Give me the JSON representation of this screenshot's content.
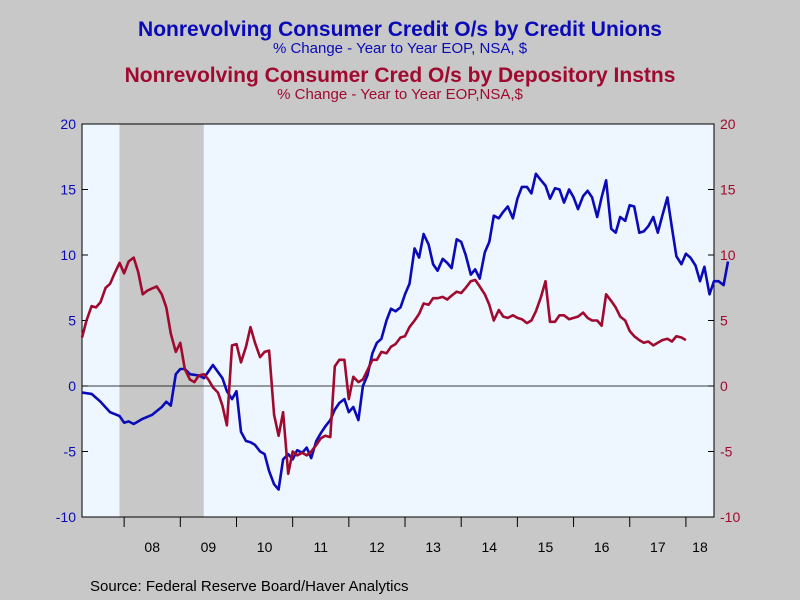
{
  "titles": {
    "title1": "Nonrevolving Consumer Credit O/s by Credit Unions",
    "subtitle1": "% Change - Year to Year     EOP, NSA, $",
    "title2": "Nonrevolving Consumer Cred O/s by Depository Instns",
    "subtitle2": "% Change - Year to Year     EOP,NSA,$"
  },
  "source": "Source:  Federal Reserve Board/Haver Analytics",
  "colors": {
    "background": "#c8c8c8",
    "plot_area": "#eef6ff",
    "recession": "#c8c8c8",
    "credit_unions": "#0a0ab8",
    "depository": "#a00a2e"
  },
  "chart_data": {
    "type": "line",
    "title": "Nonrevolving Consumer Credit O/s by Credit Unions",
    "xlabel": "",
    "ylabel": "",
    "x_unit": "year",
    "xlim": [
      2007.25,
      2018.5
    ],
    "ylim": [
      -10,
      20
    ],
    "yticks": [
      -10,
      -5,
      0,
      5,
      10,
      15,
      20
    ],
    "xtick_labels": [
      {
        "year": 2008,
        "label": "08"
      },
      {
        "year": 2009,
        "label": "09"
      },
      {
        "year": 2010,
        "label": "10"
      },
      {
        "year": 2011,
        "label": "11"
      },
      {
        "year": 2012,
        "label": "12"
      },
      {
        "year": 2013,
        "label": "13"
      },
      {
        "year": 2014,
        "label": "14"
      },
      {
        "year": 2015,
        "label": "15"
      },
      {
        "year": 2016,
        "label": "16"
      },
      {
        "year": 2017,
        "label": "17"
      },
      {
        "year": 2018,
        "label": "18"
      }
    ],
    "recession": [
      2007.917,
      2009.417
    ],
    "zero_line": true,
    "grid": false,
    "series": [
      {
        "name": "Nonrevolving Consumer Credit O/s by Credit Unions",
        "axis": "left",
        "points": [
          [
            2007.25,
            -0.5
          ],
          [
            2007.42,
            -0.6
          ],
          [
            2007.58,
            -1.2
          ],
          [
            2007.75,
            -2.0
          ],
          [
            2007.92,
            -2.3
          ],
          [
            2008.0,
            -2.8
          ],
          [
            2008.08,
            -2.7
          ],
          [
            2008.17,
            -2.9
          ],
          [
            2008.33,
            -2.5
          ],
          [
            2008.5,
            -2.2
          ],
          [
            2008.67,
            -1.6
          ],
          [
            2008.75,
            -1.2
          ],
          [
            2008.83,
            -1.5
          ],
          [
            2008.92,
            0.9
          ],
          [
            2009.0,
            1.3
          ],
          [
            2009.08,
            1.3
          ],
          [
            2009.17,
            0.9
          ],
          [
            2009.33,
            0.8
          ],
          [
            2009.42,
            0.6
          ],
          [
            2009.58,
            1.6
          ],
          [
            2009.75,
            0.6
          ],
          [
            2009.83,
            -0.4
          ],
          [
            2009.92,
            -1.0
          ],
          [
            2010.0,
            -0.4
          ],
          [
            2010.08,
            -3.5
          ],
          [
            2010.17,
            -4.2
          ],
          [
            2010.25,
            -4.3
          ],
          [
            2010.33,
            -4.5
          ],
          [
            2010.42,
            -5.0
          ],
          [
            2010.5,
            -5.2
          ],
          [
            2010.58,
            -6.5
          ],
          [
            2010.67,
            -7.5
          ],
          [
            2010.75,
            -7.9
          ],
          [
            2010.83,
            -5.6
          ],
          [
            2010.92,
            -5.2
          ],
          [
            2011.0,
            -5.6
          ],
          [
            2011.08,
            -4.9
          ],
          [
            2011.17,
            -5.1
          ],
          [
            2011.25,
            -4.7
          ],
          [
            2011.33,
            -5.5
          ],
          [
            2011.42,
            -4.2
          ],
          [
            2011.5,
            -3.6
          ],
          [
            2011.58,
            -3.1
          ],
          [
            2011.67,
            -2.6
          ],
          [
            2011.75,
            -1.8
          ],
          [
            2011.83,
            -1.3
          ],
          [
            2011.92,
            -1.0
          ],
          [
            2012.0,
            -2.0
          ],
          [
            2012.08,
            -1.6
          ],
          [
            2012.17,
            -2.6
          ],
          [
            2012.25,
            0.0
          ],
          [
            2012.33,
            0.8
          ],
          [
            2012.42,
            2.5
          ],
          [
            2012.5,
            3.3
          ],
          [
            2012.58,
            3.6
          ],
          [
            2012.67,
            5.0
          ],
          [
            2012.75,
            5.9
          ],
          [
            2012.83,
            5.7
          ],
          [
            2012.92,
            6.0
          ],
          [
            2013.0,
            7.0
          ],
          [
            2013.08,
            7.8
          ],
          [
            2013.17,
            10.5
          ],
          [
            2013.25,
            9.8
          ],
          [
            2013.33,
            11.6
          ],
          [
            2013.42,
            10.8
          ],
          [
            2013.5,
            9.3
          ],
          [
            2013.58,
            8.8
          ],
          [
            2013.67,
            9.7
          ],
          [
            2013.75,
            9.4
          ],
          [
            2013.83,
            9.0
          ],
          [
            2013.92,
            11.2
          ],
          [
            2014.0,
            11.0
          ],
          [
            2014.08,
            10.0
          ],
          [
            2014.17,
            8.5
          ],
          [
            2014.25,
            8.9
          ],
          [
            2014.33,
            8.2
          ],
          [
            2014.42,
            10.2
          ],
          [
            2014.5,
            11.0
          ],
          [
            2014.58,
            13.0
          ],
          [
            2014.67,
            12.8
          ],
          [
            2014.75,
            13.3
          ],
          [
            2014.83,
            13.7
          ],
          [
            2014.92,
            12.8
          ],
          [
            2015.0,
            14.3
          ],
          [
            2015.08,
            15.2
          ],
          [
            2015.17,
            15.2
          ],
          [
            2015.25,
            14.7
          ],
          [
            2015.33,
            16.2
          ],
          [
            2015.42,
            15.7
          ],
          [
            2015.5,
            15.3
          ],
          [
            2015.58,
            14.3
          ],
          [
            2015.67,
            15.1
          ],
          [
            2015.75,
            15.0
          ],
          [
            2015.83,
            14.0
          ],
          [
            2015.92,
            15.0
          ],
          [
            2016.0,
            14.4
          ],
          [
            2016.08,
            13.5
          ],
          [
            2016.17,
            14.5
          ],
          [
            2016.25,
            14.9
          ],
          [
            2016.33,
            14.4
          ],
          [
            2016.42,
            12.9
          ],
          [
            2016.5,
            14.4
          ],
          [
            2016.58,
            15.7
          ],
          [
            2016.67,
            12.0
          ],
          [
            2016.75,
            11.7
          ],
          [
            2016.83,
            12.9
          ],
          [
            2016.92,
            12.6
          ],
          [
            2017.0,
            13.8
          ],
          [
            2017.08,
            13.7
          ],
          [
            2017.17,
            11.7
          ],
          [
            2017.25,
            11.8
          ],
          [
            2017.33,
            12.2
          ],
          [
            2017.42,
            12.9
          ],
          [
            2017.5,
            11.7
          ],
          [
            2017.58,
            13.0
          ],
          [
            2017.67,
            14.4
          ],
          [
            2017.75,
            12.1
          ],
          [
            2017.83,
            9.9
          ],
          [
            2017.92,
            9.3
          ],
          [
            2018.0,
            10.1
          ],
          [
            2018.08,
            9.8
          ],
          [
            2018.17,
            9.2
          ],
          [
            2018.25,
            8.0
          ],
          [
            2018.33,
            9.1
          ],
          [
            2018.42,
            7.0
          ],
          [
            2018.5,
            8.0
          ],
          [
            2018.58,
            8.0
          ],
          [
            2018.67,
            7.7
          ],
          [
            2018.75,
            9.5
          ]
        ]
      },
      {
        "name": "Nonrevolving Consumer Cred O/s by Depository Instns",
        "axis": "right",
        "points": [
          [
            2007.25,
            3.7
          ],
          [
            2007.33,
            5.0
          ],
          [
            2007.42,
            6.1
          ],
          [
            2007.5,
            6.0
          ],
          [
            2007.58,
            6.4
          ],
          [
            2007.67,
            7.5
          ],
          [
            2007.75,
            7.8
          ],
          [
            2007.83,
            8.6
          ],
          [
            2007.92,
            9.4
          ],
          [
            2008.0,
            8.6
          ],
          [
            2008.08,
            9.5
          ],
          [
            2008.17,
            9.8
          ],
          [
            2008.25,
            8.7
          ],
          [
            2008.33,
            7.0
          ],
          [
            2008.42,
            7.3
          ],
          [
            2008.58,
            7.6
          ],
          [
            2008.67,
            7.0
          ],
          [
            2008.75,
            6.0
          ],
          [
            2008.83,
            4.0
          ],
          [
            2008.92,
            2.6
          ],
          [
            2009.0,
            3.3
          ],
          [
            2009.08,
            1.3
          ],
          [
            2009.17,
            0.5
          ],
          [
            2009.25,
            0.3
          ],
          [
            2009.33,
            0.8
          ],
          [
            2009.42,
            0.9
          ],
          [
            2009.5,
            0.5
          ],
          [
            2009.58,
            -0.1
          ],
          [
            2009.67,
            -0.5
          ],
          [
            2009.75,
            -1.5
          ],
          [
            2009.83,
            -3.0
          ],
          [
            2009.92,
            3.1
          ],
          [
            2010.0,
            3.2
          ],
          [
            2010.08,
            1.8
          ],
          [
            2010.17,
            3.0
          ],
          [
            2010.25,
            4.5
          ],
          [
            2010.33,
            3.3
          ],
          [
            2010.42,
            2.2
          ],
          [
            2010.5,
            2.6
          ],
          [
            2010.58,
            2.7
          ],
          [
            2010.67,
            -2.2
          ],
          [
            2010.75,
            -3.8
          ],
          [
            2010.83,
            -2.0
          ],
          [
            2010.92,
            -6.7
          ],
          [
            2011.0,
            -5.0
          ],
          [
            2011.08,
            -5.3
          ],
          [
            2011.17,
            -5.1
          ],
          [
            2011.25,
            -5.3
          ],
          [
            2011.33,
            -5.0
          ],
          [
            2011.42,
            -4.5
          ],
          [
            2011.5,
            -4.0
          ],
          [
            2011.58,
            -3.8
          ],
          [
            2011.67,
            -3.9
          ],
          [
            2011.75,
            1.5
          ],
          [
            2011.83,
            2.0
          ],
          [
            2011.92,
            2.0
          ],
          [
            2012.0,
            -1.0
          ],
          [
            2012.08,
            0.7
          ],
          [
            2012.17,
            0.3
          ],
          [
            2012.25,
            0.5
          ],
          [
            2012.33,
            1.2
          ],
          [
            2012.42,
            2.0
          ],
          [
            2012.5,
            2.0
          ],
          [
            2012.58,
            2.6
          ],
          [
            2012.67,
            2.5
          ],
          [
            2012.75,
            3.0
          ],
          [
            2012.83,
            3.2
          ],
          [
            2012.92,
            3.7
          ],
          [
            2013.0,
            3.8
          ],
          [
            2013.08,
            4.5
          ],
          [
            2013.17,
            5.0
          ],
          [
            2013.25,
            5.5
          ],
          [
            2013.33,
            6.3
          ],
          [
            2013.42,
            6.2
          ],
          [
            2013.5,
            6.7
          ],
          [
            2013.58,
            6.7
          ],
          [
            2013.67,
            6.8
          ],
          [
            2013.75,
            6.6
          ],
          [
            2013.83,
            6.9
          ],
          [
            2013.92,
            7.2
          ],
          [
            2014.0,
            7.1
          ],
          [
            2014.08,
            7.5
          ],
          [
            2014.17,
            8.0
          ],
          [
            2014.25,
            8.1
          ],
          [
            2014.33,
            7.6
          ],
          [
            2014.42,
            7.0
          ],
          [
            2014.5,
            6.2
          ],
          [
            2014.58,
            5.0
          ],
          [
            2014.67,
            5.8
          ],
          [
            2014.75,
            5.3
          ],
          [
            2014.83,
            5.2
          ],
          [
            2014.92,
            5.4
          ],
          [
            2015.0,
            5.2
          ],
          [
            2015.08,
            5.1
          ],
          [
            2015.17,
            4.8
          ],
          [
            2015.25,
            5.0
          ],
          [
            2015.33,
            5.7
          ],
          [
            2015.42,
            6.8
          ],
          [
            2015.5,
            8.0
          ],
          [
            2015.58,
            4.9
          ],
          [
            2015.67,
            4.9
          ],
          [
            2015.75,
            5.4
          ],
          [
            2015.83,
            5.4
          ],
          [
            2015.92,
            5.1
          ],
          [
            2016.0,
            5.2
          ],
          [
            2016.08,
            5.3
          ],
          [
            2016.17,
            5.6
          ],
          [
            2016.25,
            5.2
          ],
          [
            2016.33,
            5.0
          ],
          [
            2016.42,
            5.0
          ],
          [
            2016.5,
            4.6
          ],
          [
            2016.58,
            7.0
          ],
          [
            2016.67,
            6.5
          ],
          [
            2016.75,
            6.0
          ],
          [
            2016.83,
            5.3
          ],
          [
            2016.92,
            5.0
          ],
          [
            2017.0,
            4.2
          ],
          [
            2017.08,
            3.8
          ],
          [
            2017.17,
            3.5
          ],
          [
            2017.25,
            3.3
          ],
          [
            2017.33,
            3.4
          ],
          [
            2017.42,
            3.1
          ],
          [
            2017.5,
            3.3
          ],
          [
            2017.58,
            3.5
          ],
          [
            2017.67,
            3.6
          ],
          [
            2017.75,
            3.4
          ],
          [
            2017.83,
            3.8
          ],
          [
            2017.92,
            3.7
          ],
          [
            2018.0,
            3.5
          ]
        ]
      }
    ]
  }
}
